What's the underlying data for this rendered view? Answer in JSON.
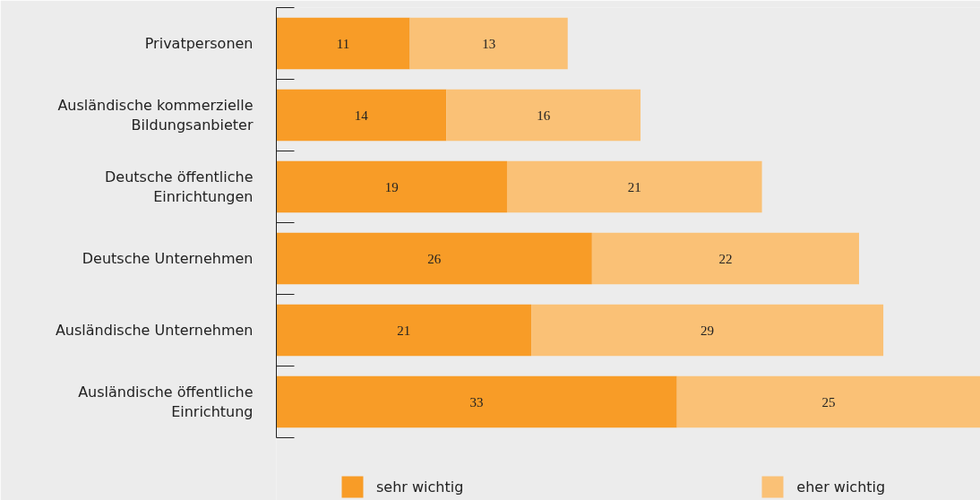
{
  "chart_data": {
    "type": "bar",
    "orientation": "horizontal",
    "stacked": true,
    "categories": [
      "Privatpersonen",
      "Ausländische kommerzielle Bildungsanbieter",
      "Deutsche öffentliche Einrichtungen",
      "Deutsche Unternehmen",
      "Ausländische Unternehmen",
      "Ausländische öffentliche Einrichtung"
    ],
    "series": [
      {
        "name": "sehr wichtig",
        "color": "#f89c27",
        "values": [
          11,
          14,
          19,
          26,
          21,
          33
        ]
      },
      {
        "name": "eher wichtig",
        "color": "#fac176",
        "values": [
          13,
          16,
          21,
          22,
          29,
          25
        ]
      }
    ],
    "xlim": [
      0,
      58
    ],
    "data_labels": true,
    "legend": "bottom",
    "grid": false,
    "tick_labels": "y"
  }
}
